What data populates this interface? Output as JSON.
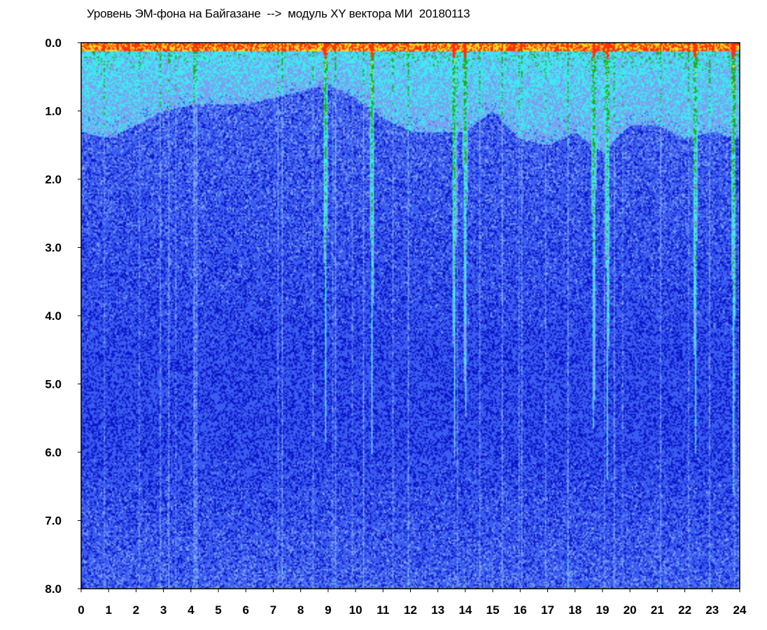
{
  "chart_data": {
    "type": "heatmap",
    "title": "Уровень ЭМ-фона на Байгазане  -->  модуль XY вектора МИ  20180113",
    "xlabel": "",
    "ylabel": "",
    "xlim": [
      0,
      24
    ],
    "ylim": [
      0,
      8
    ],
    "y_axis_inverted": true,
    "x_ticks": [
      "0",
      "1",
      "2",
      "3",
      "4",
      "5",
      "6",
      "7",
      "8",
      "9",
      "10",
      "11",
      "12",
      "13",
      "14",
      "15",
      "16",
      "17",
      "18",
      "19",
      "20",
      "21",
      "22",
      "23",
      "24"
    ],
    "y_ticks": [
      "0.0",
      "1.0",
      "2.0",
      "3.0",
      "4.0",
      "5.0",
      "6.0",
      "7.0",
      "8.0"
    ],
    "colormap": [
      "#0a14c8",
      "#3a5cf0",
      "#7aa0f0",
      "#40e8f0",
      "#22aa22",
      "#f0e020",
      "#ff3010"
    ],
    "column_profile": {
      "x": [
        0,
        1,
        2,
        3,
        4,
        5,
        6,
        7,
        8,
        9,
        10,
        11,
        12,
        13,
        14,
        15,
        16,
        17,
        18,
        19,
        20,
        21,
        22,
        23,
        24
      ],
      "bright_depth": [
        1.3,
        1.4,
        1.2,
        1.0,
        0.9,
        0.9,
        0.9,
        0.8,
        0.7,
        0.6,
        0.8,
        1.1,
        1.3,
        1.3,
        1.3,
        1.0,
        1.4,
        1.5,
        1.3,
        1.6,
        1.2,
        1.2,
        1.4,
        1.3,
        1.4
      ]
    },
    "bright_streaks": [
      8.9,
      10.6,
      13.6,
      14.0,
      18.7,
      19.2,
      22.4,
      23.8
    ]
  }
}
